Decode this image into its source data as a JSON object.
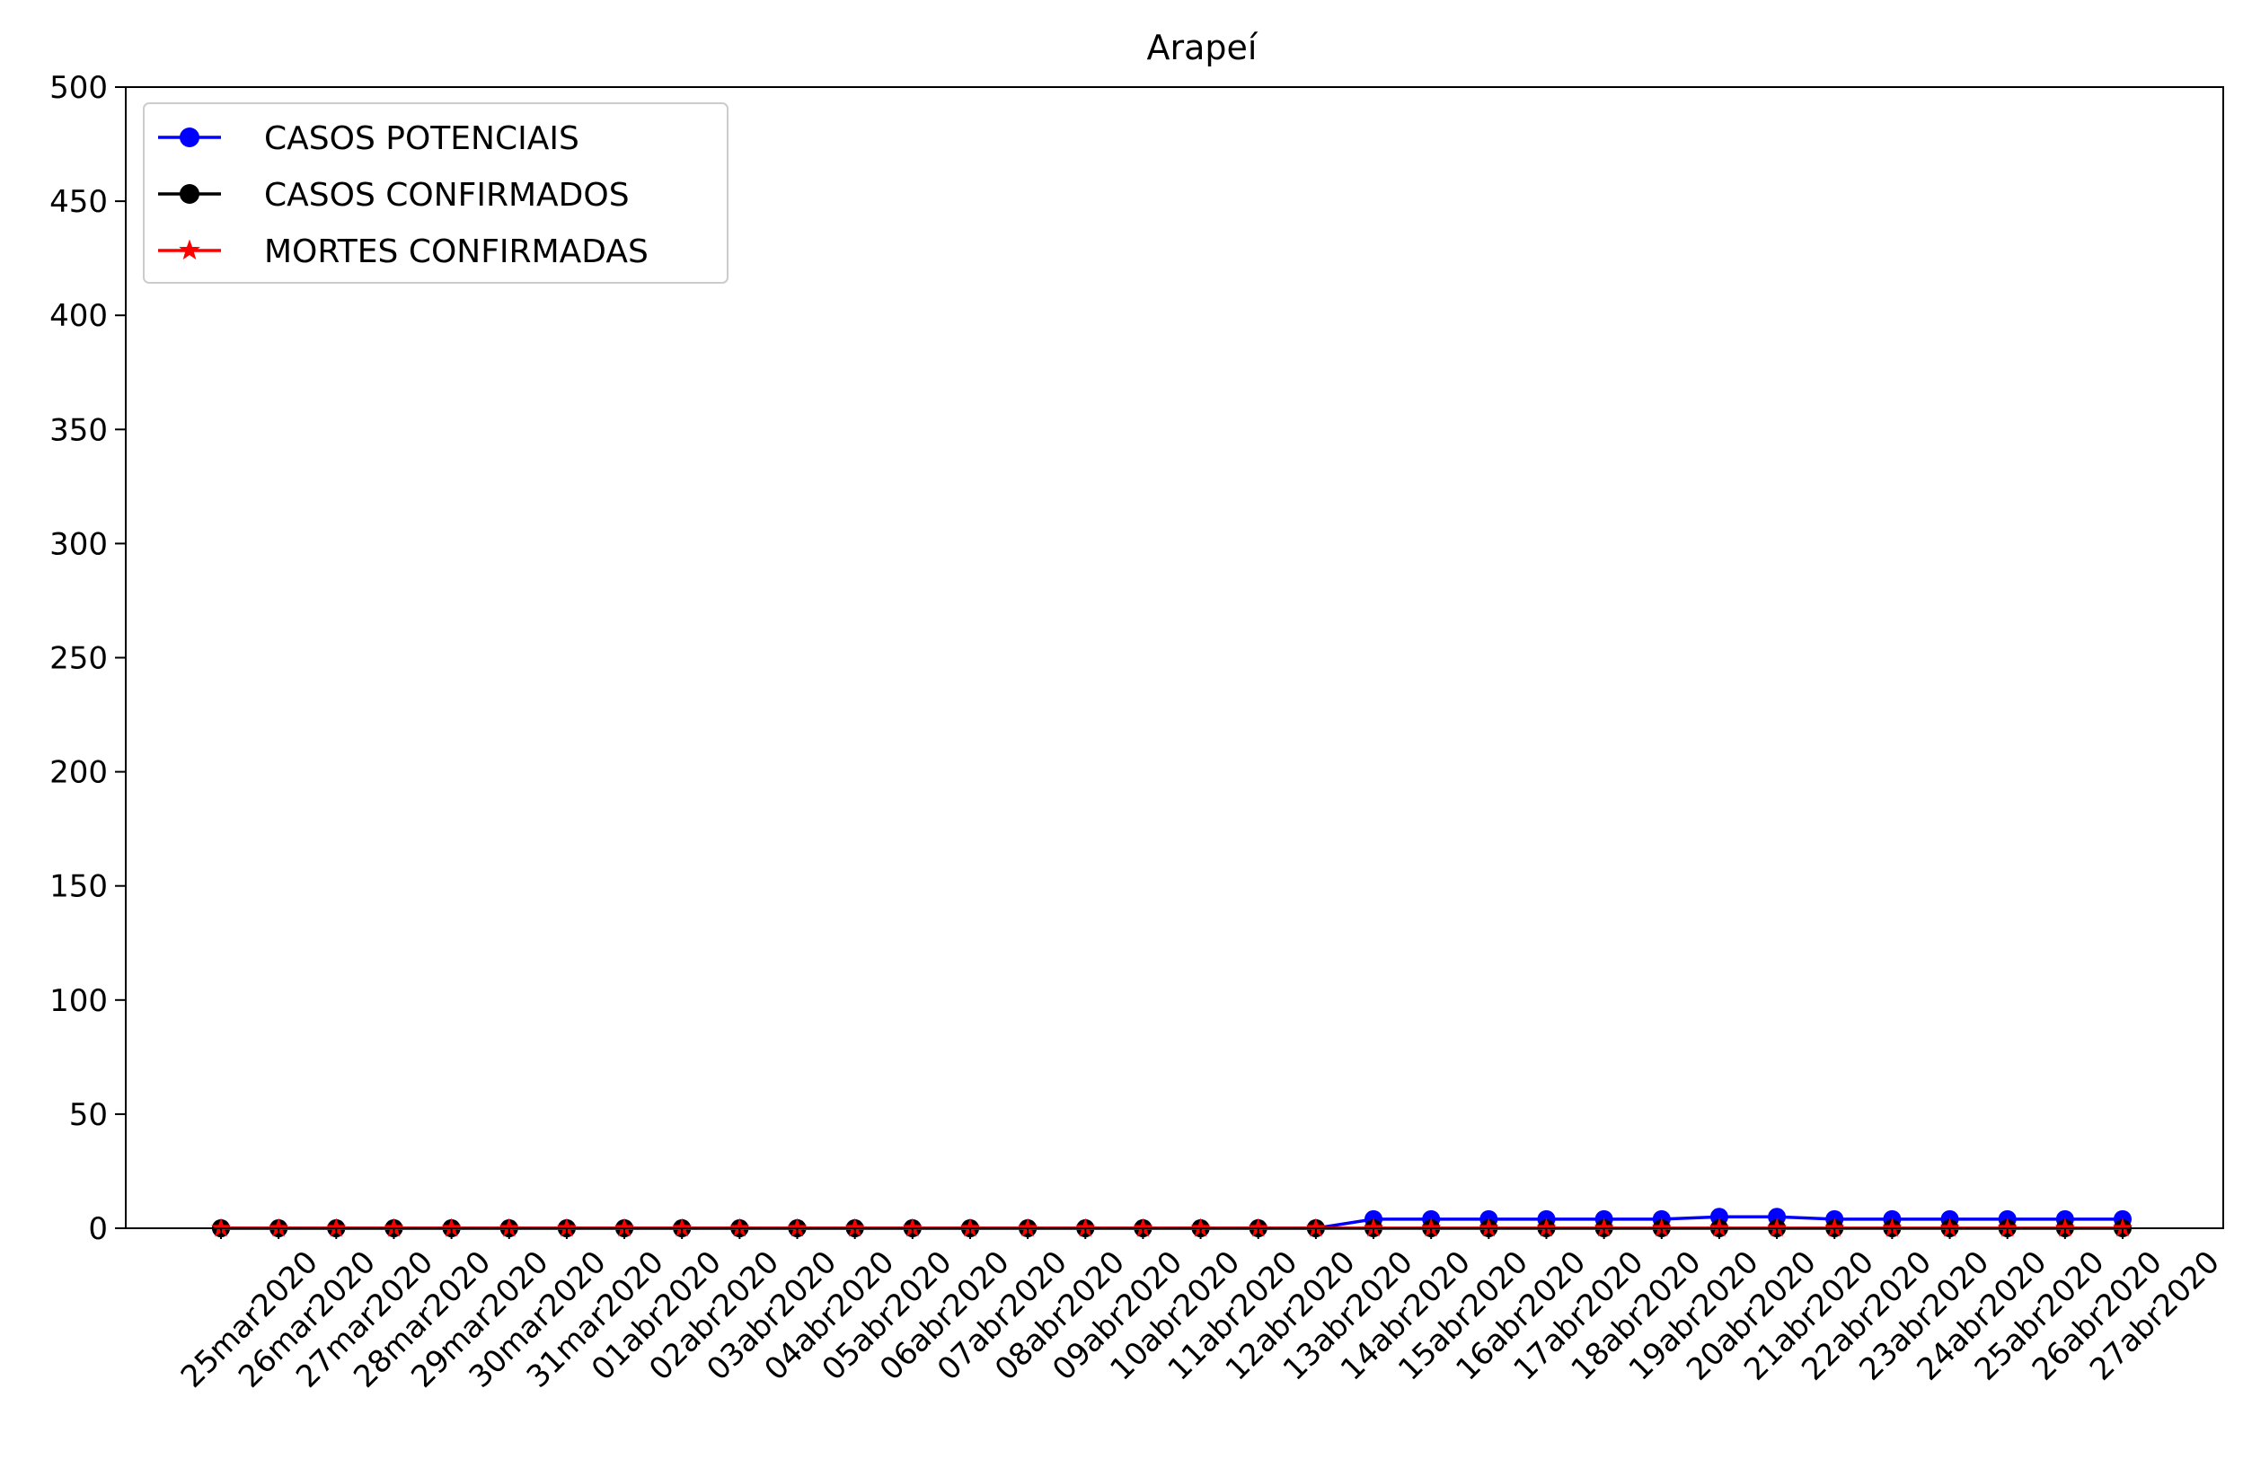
{
  "chart_data": {
    "type": "line",
    "title": "Arapeí",
    "xlabel": "",
    "ylabel": "",
    "ylim": [
      0,
      500
    ],
    "yticks": [
      0,
      50,
      100,
      150,
      200,
      250,
      300,
      350,
      400,
      450,
      500
    ],
    "grid": false,
    "legend_position": "top-left",
    "categories": [
      "25mar2020",
      "26mar2020",
      "27mar2020",
      "28mar2020",
      "29mar2020",
      "30mar2020",
      "31mar2020",
      "01abr2020",
      "02abr2020",
      "03abr2020",
      "04abr2020",
      "05abr2020",
      "06abr2020",
      "07abr2020",
      "08abr2020",
      "09abr2020",
      "10abr2020",
      "11abr2020",
      "12abr2020",
      "13abr2020",
      "14abr2020",
      "15abr2020",
      "16abr2020",
      "17abr2020",
      "18abr2020",
      "19abr2020",
      "20abr2020",
      "21abr2020",
      "22abr2020",
      "23abr2020",
      "24abr2020",
      "25abr2020",
      "26abr2020",
      "27abr2020"
    ],
    "series": [
      {
        "name": "CASOS POTENCIAIS",
        "color": "#0000ff",
        "marker": "circle",
        "values": [
          0,
          0,
          0,
          0,
          0,
          0,
          0,
          0,
          0,
          0,
          0,
          0,
          0,
          0,
          0,
          0,
          0,
          0,
          0,
          0,
          4,
          4,
          4,
          4,
          4,
          4,
          5,
          5,
          4,
          4,
          4,
          4,
          4,
          4
        ]
      },
      {
        "name": "CASOS CONFIRMADOS",
        "color": "#000000",
        "marker": "circle",
        "values": [
          0,
          0,
          0,
          0,
          0,
          0,
          0,
          0,
          0,
          0,
          0,
          0,
          0,
          0,
          0,
          0,
          0,
          0,
          0,
          0,
          0,
          0,
          0,
          0,
          0,
          0,
          0,
          0,
          0,
          0,
          0,
          0,
          0,
          0
        ]
      },
      {
        "name": "MORTES CONFIRMADAS",
        "color": "#ff0000",
        "marker": "star",
        "values": [
          0,
          0,
          0,
          0,
          0,
          0,
          0,
          0,
          0,
          0,
          0,
          0,
          0,
          0,
          0,
          0,
          0,
          0,
          0,
          0,
          0,
          0,
          0,
          0,
          0,
          0,
          0,
          0,
          0,
          0,
          0,
          0,
          0,
          0
        ]
      }
    ]
  }
}
